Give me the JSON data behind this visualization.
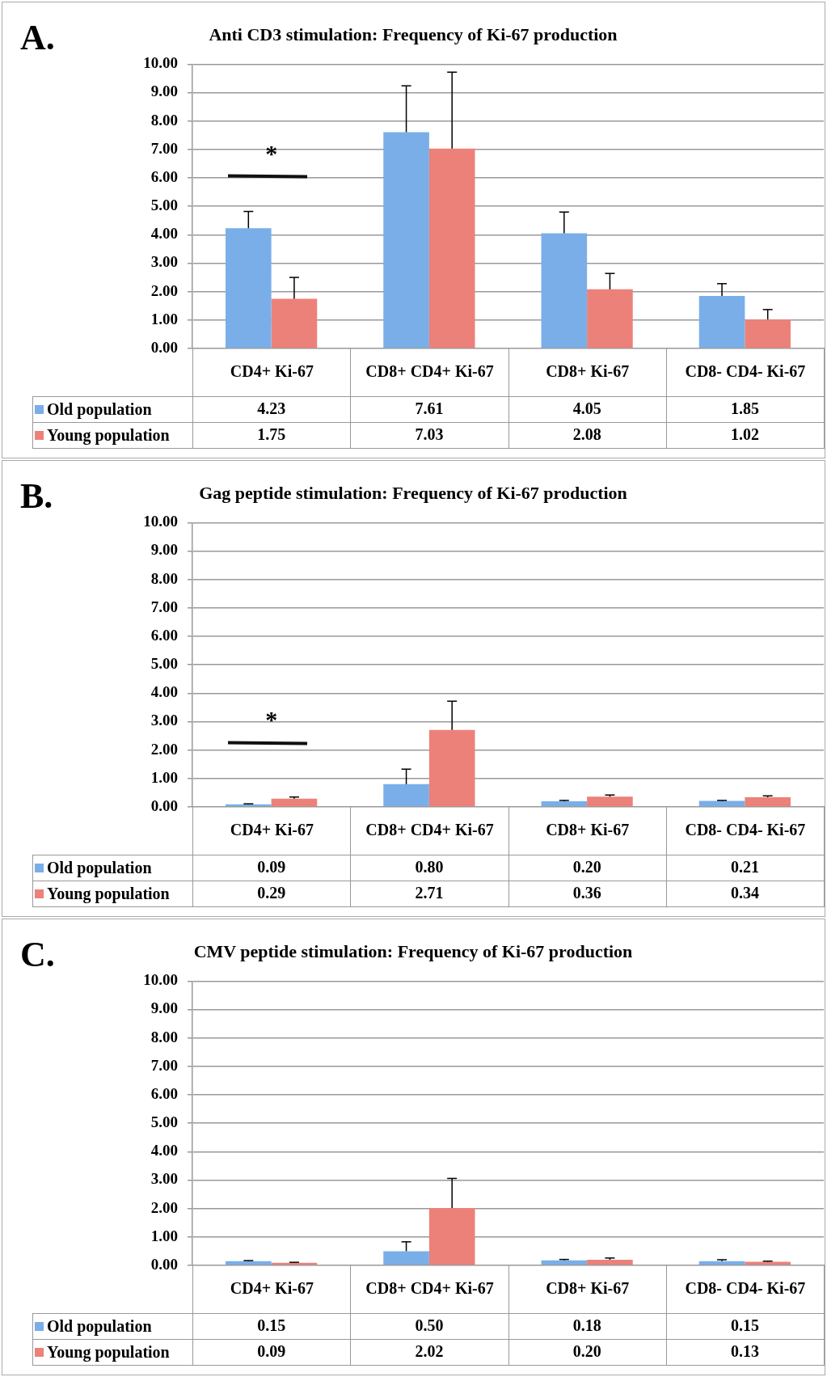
{
  "chart_data": [
    {
      "type": "bar",
      "title": "Anti CD3 stimulation: Frequency of Ki-67 production",
      "categories": [
        "CD4+ Ki-67",
        "CD8+ CD4+ Ki-67",
        "CD8+ Ki-67",
        "CD8- CD4- Ki-67"
      ],
      "series": [
        {
          "name": "Old population",
          "color": "#7aaee8",
          "values": [
            4.23,
            7.61,
            4.05,
            1.85
          ],
          "value_labels": [
            "4.23",
            "7.61",
            "4.05",
            "1.85"
          ],
          "errors": [
            [
              4.23,
              4.82
            ],
            [
              7.61,
              9.24
            ],
            [
              4.05,
              4.8
            ],
            [
              1.85,
              2.28
            ]
          ]
        },
        {
          "name": "Young population",
          "color": "#ec8179",
          "values": [
            1.75,
            7.03,
            2.08,
            1.02
          ],
          "value_labels": [
            "1.75",
            "7.03",
            "2.08",
            "1.02"
          ],
          "errors": [
            [
              1.75,
              2.5
            ],
            [
              7.03,
              9.72
            ],
            [
              2.08,
              2.64
            ],
            [
              1.02,
              1.37
            ]
          ]
        }
      ],
      "ylim": [
        0,
        10
      ],
      "yticks": [
        {
          "value": 0,
          "label": "0.00"
        },
        {
          "value": 1,
          "label": "1.00"
        },
        {
          "value": 2,
          "label": "2.00"
        },
        {
          "value": 3,
          "label": "3.00"
        },
        {
          "value": 4,
          "label": "4.00"
        },
        {
          "value": 5,
          "label": "5.00"
        },
        {
          "value": 6,
          "label": "6.00"
        },
        {
          "value": 7,
          "label": "7.00"
        },
        {
          "value": 8,
          "label": "8.00"
        },
        {
          "value": 9,
          "label": "9.00"
        },
        {
          "value": 10,
          "label": "10.00"
        }
      ],
      "grid": "y",
      "legend": "bottom",
      "annotations": [
        "A.",
        "*"
      ]
    },
    {
      "type": "bar",
      "title": "Gag peptide stimulation: Frequency of Ki-67 production",
      "categories": [
        "CD4+ Ki-67",
        "CD8+ CD4+ Ki-67",
        "CD8+ Ki-67",
        "CD8- CD4- Ki-67"
      ],
      "series": [
        {
          "name": "Old population",
          "color": "#7aaee8",
          "values": [
            0.09,
            0.8,
            0.2,
            0.21
          ],
          "value_labels": [
            "0.09",
            "0.80",
            "0.20",
            "0.21"
          ],
          "errors": [
            [
              0.09,
              0.11
            ],
            [
              0.8,
              1.33
            ],
            [
              0.2,
              0.23
            ],
            [
              0.21,
              0.23
            ]
          ]
        },
        {
          "name": "Young population",
          "color": "#ec8179",
          "values": [
            0.29,
            2.71,
            0.36,
            0.34
          ],
          "value_labels": [
            "0.29",
            "2.71",
            "0.36",
            "0.34"
          ],
          "errors": [
            [
              0.29,
              0.35
            ],
            [
              2.71,
              3.72
            ],
            [
              0.36,
              0.42
            ],
            [
              0.34,
              0.39
            ]
          ]
        }
      ],
      "ylim": [
        0,
        10
      ],
      "yticks": [
        {
          "value": 0,
          "label": "0.00"
        },
        {
          "value": 1,
          "label": "1.00"
        },
        {
          "value": 2,
          "label": "2.00"
        },
        {
          "value": 3,
          "label": "3.00"
        },
        {
          "value": 4,
          "label": "4.00"
        },
        {
          "value": 5,
          "label": "5.00"
        },
        {
          "value": 6,
          "label": "6.00"
        },
        {
          "value": 7,
          "label": "7.00"
        },
        {
          "value": 8,
          "label": "8.00"
        },
        {
          "value": 9,
          "label": "9.00"
        },
        {
          "value": 10,
          "label": "10.00"
        }
      ],
      "grid": "y",
      "legend": "bottom",
      "annotations": [
        "B.",
        "*"
      ]
    },
    {
      "type": "bar",
      "title": "CMV peptide stimulation: Frequency of Ki-67 production",
      "categories": [
        "CD4+ Ki-67",
        "CD8+ CD4+ Ki-67",
        "CD8+ Ki-67",
        "CD8- CD4- Ki-67"
      ],
      "series": [
        {
          "name": "Old population",
          "color": "#7aaee8",
          "values": [
            0.15,
            0.5,
            0.18,
            0.15
          ],
          "value_labels": [
            "0.15",
            "0.50",
            "0.18",
            "0.15"
          ],
          "errors": [
            [
              0.15,
              0.17
            ],
            [
              0.5,
              0.83
            ],
            [
              0.18,
              0.21
            ],
            [
              0.15,
              0.2
            ]
          ]
        },
        {
          "name": "Young population",
          "color": "#ec8179",
          "values": [
            0.09,
            2.02,
            0.2,
            0.13
          ],
          "value_labels": [
            "0.09",
            "2.02",
            "0.20",
            "0.13"
          ],
          "errors": [
            [
              0.09,
              0.11
            ],
            [
              2.02,
              3.06
            ],
            [
              0.2,
              0.26
            ],
            [
              0.13,
              0.15
            ]
          ]
        }
      ],
      "ylim": [
        0,
        10
      ],
      "yticks": [
        {
          "value": 0,
          "label": "0.00"
        },
        {
          "value": 1,
          "label": "1.00"
        },
        {
          "value": 2,
          "label": "2.00"
        },
        {
          "value": 3,
          "label": "3.00"
        },
        {
          "value": 4,
          "label": "4.00"
        },
        {
          "value": 5,
          "label": "5.00"
        },
        {
          "value": 6,
          "label": "6.00"
        },
        {
          "value": 7,
          "label": "7.00"
        },
        {
          "value": 8,
          "label": "8.00"
        },
        {
          "value": 9,
          "label": "9.00"
        },
        {
          "value": 10,
          "label": "10.00"
        }
      ],
      "grid": "y",
      "legend": "bottom",
      "annotations": [
        "C."
      ]
    }
  ]
}
